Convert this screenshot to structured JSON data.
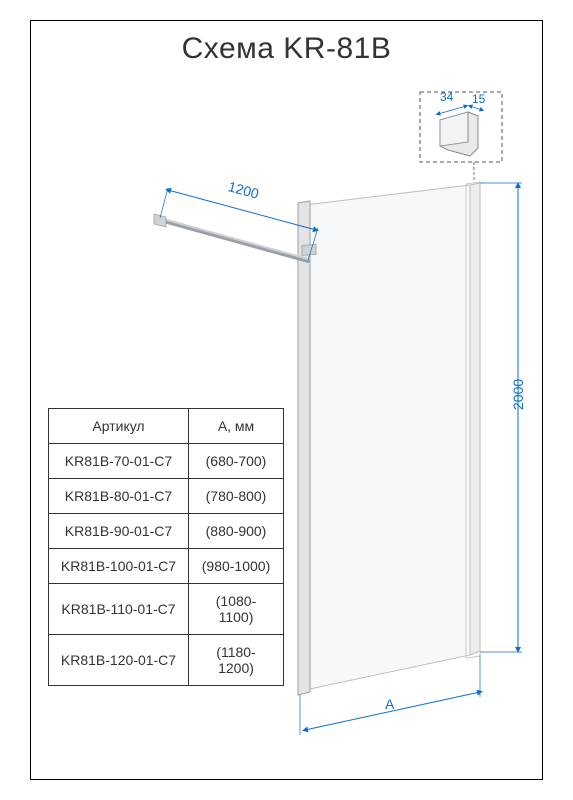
{
  "title": "Схема KR-81B",
  "dimensions": {
    "support_bar": "1200",
    "height": "2000",
    "width_label": "A",
    "detail_a": "34",
    "detail_b": "15"
  },
  "table": {
    "headers": [
      "Артикул",
      "A, мм"
    ],
    "rows": [
      [
        "KR81B-70-01-C7",
        "(680-700)"
      ],
      [
        "KR81B-80-01-C7",
        "(780-800)"
      ],
      [
        "KR81B-90-01-C7",
        "(880-900)"
      ],
      [
        "KR81B-100-01-C7",
        "(980-1000)"
      ],
      [
        "KR81B-110-01-C7",
        "(1080-1100)"
      ],
      [
        "KR81B-120-01-C7",
        "(1180-1200)"
      ]
    ]
  },
  "colors": {
    "dim": "#0a6ed1",
    "panel_fill": "#f7f8f9",
    "panel_stroke": "#9aa0a6",
    "frame_stroke": "#bdbdbd",
    "detail_fill": "#e8e9ea",
    "detail_stroke": "#888"
  }
}
